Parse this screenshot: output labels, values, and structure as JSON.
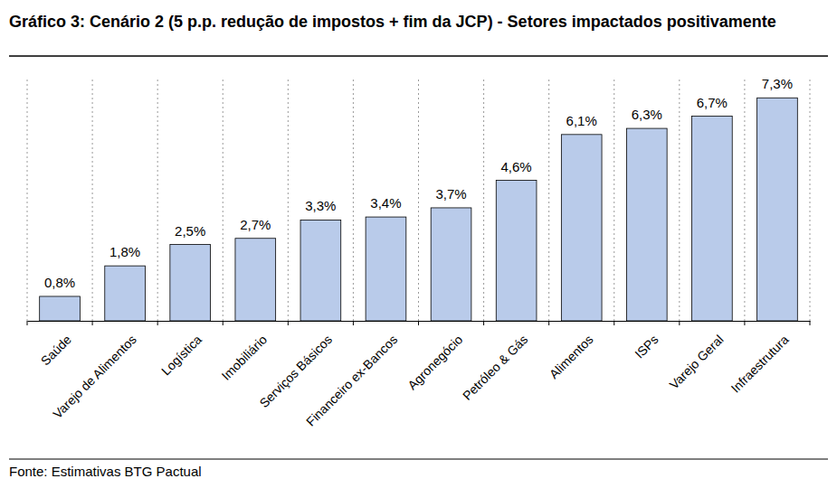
{
  "chart_data": {
    "type": "bar",
    "title": "Gráfico 3: Cenário 2 (5 p.p. redução de impostos + fim da JCP) - Setores impactados positivamente",
    "categories": [
      "Saúde",
      "Varejo de Alimentos",
      "Logística",
      "Imobiliário",
      "Serviços Básicos",
      "Financeiro ex-Bancos",
      "Agronegócio",
      "Petróleo & Gás",
      "Alimentos",
      "ISPs",
      "Varejo Geral",
      "Infraestrutura"
    ],
    "values": [
      0.8,
      1.8,
      2.5,
      2.7,
      3.3,
      3.4,
      3.7,
      4.6,
      6.1,
      6.3,
      6.7,
      7.3
    ],
    "value_labels": [
      "0,8%",
      "1,8%",
      "2,5%",
      "2,7%",
      "3,3%",
      "3,4%",
      "3,7%",
      "4,6%",
      "6,1%",
      "6,3%",
      "6,7%",
      "7,3%"
    ],
    "color": "#b9cbea",
    "ylim": [
      0,
      7.9
    ],
    "grid": true,
    "data_labels": true,
    "tick_labels": "x",
    "source": "Fonte: Estimativas BTG Pactual"
  }
}
